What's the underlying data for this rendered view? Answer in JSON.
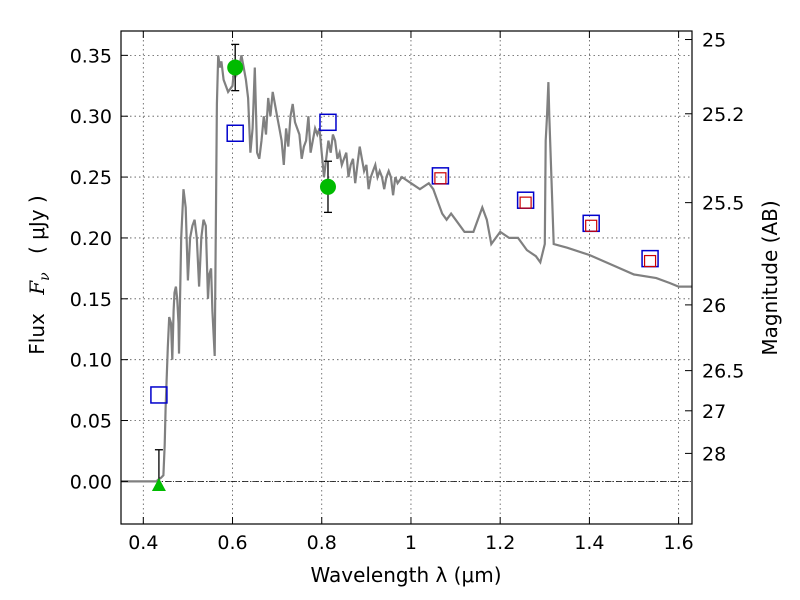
{
  "chart_data": {
    "type": "line",
    "xlabel": "Wavelength  λ (μm)",
    "ylabel_prefix": "Flux",
    "ylabel_symbol": "F",
    "ylabel_subscript": "ν",
    "ylabel_unit": "( μJy )",
    "y2label": "Magnitude (AB)",
    "xlim": [
      0.35,
      1.63
    ],
    "ylim": [
      -0.035,
      0.37
    ],
    "grid": true,
    "x_ticks": [
      0.4,
      0.6,
      0.8,
      1.0,
      1.2,
      1.4,
      1.6
    ],
    "x_tick_labels": [
      "0.4",
      "0.6",
      "0.8",
      "1",
      "1.2",
      "1.4",
      "1.6"
    ],
    "y_ticks": [
      0.0,
      0.05,
      0.1,
      0.15,
      0.2,
      0.25,
      0.3,
      0.35
    ],
    "y_tick_labels": [
      "0.00",
      "0.05",
      "0.10",
      "0.15",
      "0.20",
      "0.25",
      "0.30",
      "0.35"
    ],
    "y2_ticks": [
      {
        "label": "25",
        "flux": 0.363
      },
      {
        "label": "25.2",
        "flux": 0.302
      },
      {
        "label": "25.5",
        "flux": 0.229
      },
      {
        "label": "26",
        "flux": 0.145
      },
      {
        "label": "26.5",
        "flux": 0.091
      },
      {
        "label": "27",
        "flux": 0.058
      },
      {
        "label": "28",
        "flux": 0.023
      }
    ],
    "zero_line": {
      "y": 0.0,
      "color": "#000000"
    },
    "series": [
      {
        "kind": "model_sed",
        "color": "#808080",
        "x": [
          0.35,
          0.43,
          0.432,
          0.44,
          0.445,
          0.448,
          0.45,
          0.455,
          0.458,
          0.462,
          0.465,
          0.468,
          0.47,
          0.473,
          0.476,
          0.479,
          0.48,
          0.485,
          0.49,
          0.495,
          0.5,
          0.505,
          0.51,
          0.515,
          0.52,
          0.525,
          0.53,
          0.535,
          0.54,
          0.545,
          0.548,
          0.552,
          0.555,
          0.56,
          0.565,
          0.568,
          0.572,
          0.575,
          0.58,
          0.59,
          0.6,
          0.605,
          0.61,
          0.615,
          0.62,
          0.625,
          0.63,
          0.635,
          0.64,
          0.645,
          0.65,
          0.655,
          0.66,
          0.665,
          0.67,
          0.675,
          0.68,
          0.685,
          0.69,
          0.695,
          0.7,
          0.705,
          0.71,
          0.715,
          0.72,
          0.725,
          0.73,
          0.735,
          0.74,
          0.745,
          0.75,
          0.755,
          0.76,
          0.765,
          0.77,
          0.775,
          0.78,
          0.785,
          0.79,
          0.795,
          0.8,
          0.805,
          0.81,
          0.815,
          0.82,
          0.825,
          0.83,
          0.835,
          0.84,
          0.845,
          0.85,
          0.855,
          0.86,
          0.865,
          0.87,
          0.875,
          0.88,
          0.885,
          0.89,
          0.895,
          0.9,
          0.905,
          0.91,
          0.915,
          0.92,
          0.925,
          0.93,
          0.935,
          0.94,
          0.945,
          0.95,
          0.955,
          0.96,
          0.965,
          0.97,
          0.98,
          1.0,
          1.02,
          1.04,
          1.05,
          1.06,
          1.07,
          1.08,
          1.09,
          1.1,
          1.12,
          1.14,
          1.16,
          1.17,
          1.18,
          1.2,
          1.22,
          1.24,
          1.26,
          1.28,
          1.29,
          1.3,
          1.302,
          1.305,
          1.308,
          1.31,
          1.32,
          1.35,
          1.4,
          1.45,
          1.5,
          1.55,
          1.58,
          1.6,
          1.63
        ],
        "y": [
          0.0,
          0.0,
          0.001,
          0.003,
          0.005,
          0.03,
          0.06,
          0.11,
          0.135,
          0.13,
          0.1,
          0.14,
          0.155,
          0.16,
          0.15,
          0.13,
          0.105,
          0.2,
          0.24,
          0.225,
          0.165,
          0.2,
          0.21,
          0.215,
          0.2,
          0.16,
          0.2,
          0.215,
          0.21,
          0.15,
          0.17,
          0.175,
          0.14,
          0.103,
          0.31,
          0.35,
          0.34,
          0.345,
          0.33,
          0.32,
          0.325,
          0.345,
          0.335,
          0.34,
          0.35,
          0.34,
          0.33,
          0.315,
          0.27,
          0.29,
          0.34,
          0.27,
          0.265,
          0.28,
          0.3,
          0.285,
          0.315,
          0.3,
          0.32,
          0.31,
          0.3,
          0.29,
          0.28,
          0.26,
          0.29,
          0.275,
          0.3,
          0.31,
          0.295,
          0.29,
          0.285,
          0.265,
          0.275,
          0.28,
          0.3,
          0.27,
          0.28,
          0.29,
          0.285,
          0.29,
          0.27,
          0.25,
          0.265,
          0.28,
          0.27,
          0.285,
          0.28,
          0.265,
          0.27,
          0.26,
          0.265,
          0.27,
          0.25,
          0.26,
          0.265,
          0.245,
          0.26,
          0.275,
          0.265,
          0.255,
          0.26,
          0.24,
          0.25,
          0.255,
          0.26,
          0.25,
          0.255,
          0.25,
          0.24,
          0.25,
          0.255,
          0.25,
          0.235,
          0.25,
          0.245,
          0.25,
          0.245,
          0.24,
          0.245,
          0.24,
          0.23,
          0.22,
          0.215,
          0.22,
          0.215,
          0.205,
          0.205,
          0.225,
          0.215,
          0.195,
          0.205,
          0.2,
          0.2,
          0.19,
          0.185,
          0.18,
          0.195,
          0.28,
          0.3,
          0.328,
          0.3,
          0.195,
          0.192,
          0.186,
          0.178,
          0.17,
          0.167,
          0.163,
          0.16,
          0.16
        ]
      },
      {
        "kind": "model_photometry",
        "marker": "open-square",
        "color": "#0000cc",
        "x": [
          0.435,
          0.606,
          0.814,
          1.066,
          1.257,
          1.404,
          1.536
        ],
        "y": [
          0.071,
          0.286,
          0.295,
          0.251,
          0.231,
          0.212,
          0.183
        ]
      },
      {
        "kind": "model_photometry_inner",
        "marker": "small-open-square",
        "color": "#cc0000",
        "x": [
          1.066,
          1.257,
          1.404,
          1.536
        ],
        "y": [
          0.249,
          0.229,
          0.21,
          0.181
        ]
      },
      {
        "kind": "observed_detections",
        "marker": "filled-circle",
        "color": "#00bb00",
        "x": [
          0.606,
          0.814
        ],
        "y": [
          0.34,
          0.242
        ],
        "yerr": [
          0.019,
          0.021
        ]
      },
      {
        "kind": "observed_upper_limit",
        "marker": "filled-triangle",
        "color": "#00bb00",
        "x": [
          0.435
        ],
        "y": [
          -0.003
        ],
        "yerr_top": [
          0.026
        ],
        "yerr_bottom": [
          -0.003
        ]
      }
    ]
  }
}
